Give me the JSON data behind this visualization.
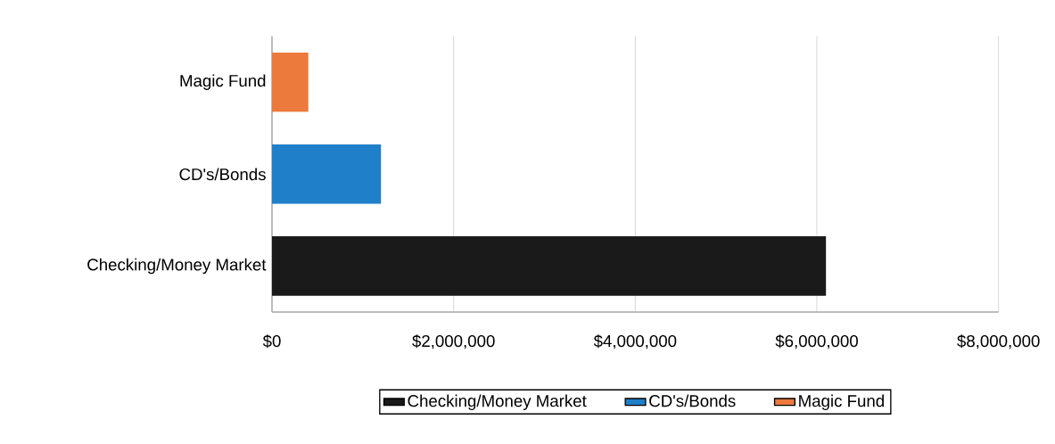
{
  "chart_data": {
    "type": "bar",
    "orientation": "horizontal",
    "categories": [
      "Magic Fund",
      "CD's/Bonds",
      "Checking/Money Market"
    ],
    "series": [
      {
        "name": "Checking/Money Market",
        "color": "#1a1a1a",
        "values": [
          null,
          null,
          6100000
        ]
      },
      {
        "name": "CD's/Bonds",
        "color": "#1f7fc8",
        "values": [
          null,
          1200000,
          null
        ]
      },
      {
        "name": "Magic Fund",
        "color": "#ec7a3c",
        "values": [
          400000,
          null,
          null
        ]
      }
    ],
    "xlim": [
      0,
      8000000
    ],
    "xticks": [
      {
        "value": 0,
        "label": "$0"
      },
      {
        "value": 2000000,
        "label": "$2,000,000"
      },
      {
        "value": 4000000,
        "label": "$4,000,000"
      },
      {
        "value": 6000000,
        "label": "$6,000,000"
      },
      {
        "value": 8000000,
        "label": "$8,000,000"
      }
    ],
    "grid": "x",
    "legend": "bottom"
  }
}
